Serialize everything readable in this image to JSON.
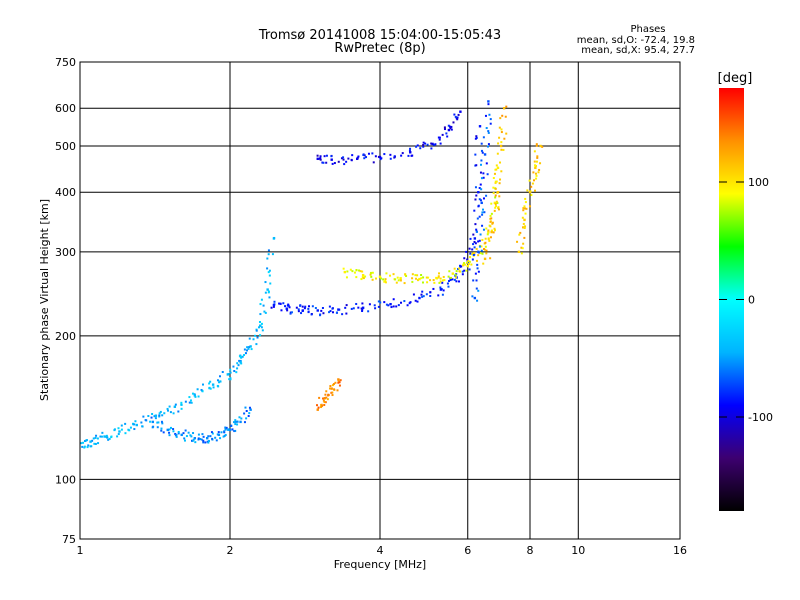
{
  "chart_data": {
    "type": "scatter",
    "title": "Tromsø 20141008 15:04:00-15:05:43",
    "subtitle": "RwPretec (8p)",
    "xlabel": "Frequency [MHz]",
    "ylabel": "Stationary phase Virtual Height [km]",
    "x_scale": "log",
    "y_scale": "log",
    "xlim": [
      1,
      16
    ],
    "ylim": [
      75,
      750
    ],
    "x_ticks": [
      1,
      2,
      4,
      6,
      8,
      10,
      16
    ],
    "y_ticks": [
      75,
      100,
      200,
      300,
      400,
      500,
      600,
      750
    ],
    "grid": true,
    "phases": {
      "header": "Phases",
      "o_line": "mean, sd,O: -72.4, 19.8",
      "x_line": "mean, sd,X:  95.4, 27.7"
    },
    "colorbar": {
      "label": "[deg]",
      "range": [
        -180,
        180
      ],
      "ticks": [
        100,
        0,
        -100
      ],
      "colors": [
        "#000000",
        "#3d0070",
        "#0000ff",
        "#00b4ff",
        "#00ffff",
        "#00ff00",
        "#ffff00",
        "#ff9000",
        "#ff0000"
      ]
    },
    "traces": [
      {
        "x": [
          1.0,
          1.05,
          1.12,
          1.2,
          1.3,
          1.42,
          1.55,
          1.7,
          1.85,
          1.98,
          2.1,
          2.2,
          2.3,
          2.38,
          2.45
        ],
        "y": [
          118,
          120,
          123,
          126,
          130,
          136,
          142,
          150,
          158,
          166,
          176,
          190,
          210,
          250,
          320
        ],
        "phase": -40
      },
      {
        "x": [
          1.4,
          1.5,
          1.6,
          1.7,
          1.8,
          1.9,
          2.0,
          2.1,
          2.2
        ],
        "y": [
          132,
          127,
          124,
          122,
          122,
          124,
          127,
          132,
          140
        ],
        "phase": -55
      },
      {
        "x": [
          2.45,
          2.6,
          2.8,
          3.0,
          3.3,
          3.7,
          4.2,
          4.8,
          5.3,
          5.7,
          6.0,
          6.2,
          6.3,
          6.35
        ],
        "y": [
          232,
          228,
          226,
          226,
          227,
          229,
          233,
          240,
          250,
          265,
          285,
          320,
          400,
          550
        ],
        "phase": -85
      },
      {
        "x": [
          3.0,
          3.2,
          3.6,
          4.0,
          4.6,
          5.1,
          5.5,
          5.8
        ],
        "y": [
          470,
          468,
          470,
          474,
          485,
          505,
          540,
          590
        ],
        "phase": -95
      },
      {
        "x": [
          3.4,
          3.7,
          4.0,
          4.4,
          4.8,
          5.2,
          5.6,
          6.0,
          6.3,
          6.6,
          6.8,
          6.9
        ],
        "y": [
          272,
          268,
          266,
          264,
          263,
          264,
          270,
          280,
          300,
          330,
          380,
          450
        ],
        "phase": 95
      },
      {
        "x": [
          6.5,
          6.7,
          6.9,
          7.0,
          7.1
        ],
        "y": [
          290,
          330,
          400,
          500,
          600
        ],
        "phase": 115
      },
      {
        "x": [
          6.2,
          6.3,
          6.4,
          6.5,
          6.6
        ],
        "y": [
          240,
          300,
          380,
          480,
          620
        ],
        "phase": -70
      },
      {
        "x": [
          7.6,
          7.8,
          8.0,
          8.2,
          8.4
        ],
        "y": [
          300,
          350,
          400,
          450,
          500
        ],
        "phase": 110
      },
      {
        "x": [
          3.0,
          3.1,
          3.2,
          3.3
        ],
        "y": [
          140,
          148,
          155,
          162
        ],
        "phase": 135
      }
    ]
  }
}
